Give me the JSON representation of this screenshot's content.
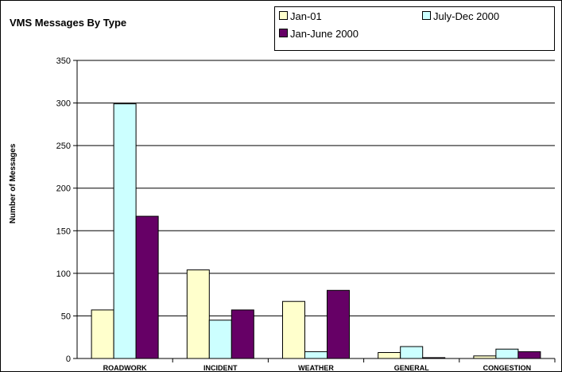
{
  "chart_data": {
    "type": "bar",
    "title": "VMS Messages By Type",
    "xlabel": "",
    "ylabel": "Number of Messages",
    "ylim": [
      0,
      350
    ],
    "yticks": [
      0,
      50,
      100,
      150,
      200,
      250,
      300,
      350
    ],
    "grid": true,
    "legend_position": "top-right",
    "categories": [
      "ROADWORK",
      "INCIDENT",
      "WEATHER",
      "GENERAL",
      "CONGESTION"
    ],
    "series": [
      {
        "name": "Jan-01",
        "color": "#FFFFCC",
        "values": [
          57,
          104,
          67,
          7,
          3
        ]
      },
      {
        "name": "July-Dec 2000",
        "color": "#CCFFFF",
        "values": [
          299,
          45,
          8,
          14,
          11
        ]
      },
      {
        "name": "Jan-June 2000",
        "color": "#660066",
        "values": [
          167,
          57,
          80,
          1,
          8
        ]
      }
    ]
  }
}
